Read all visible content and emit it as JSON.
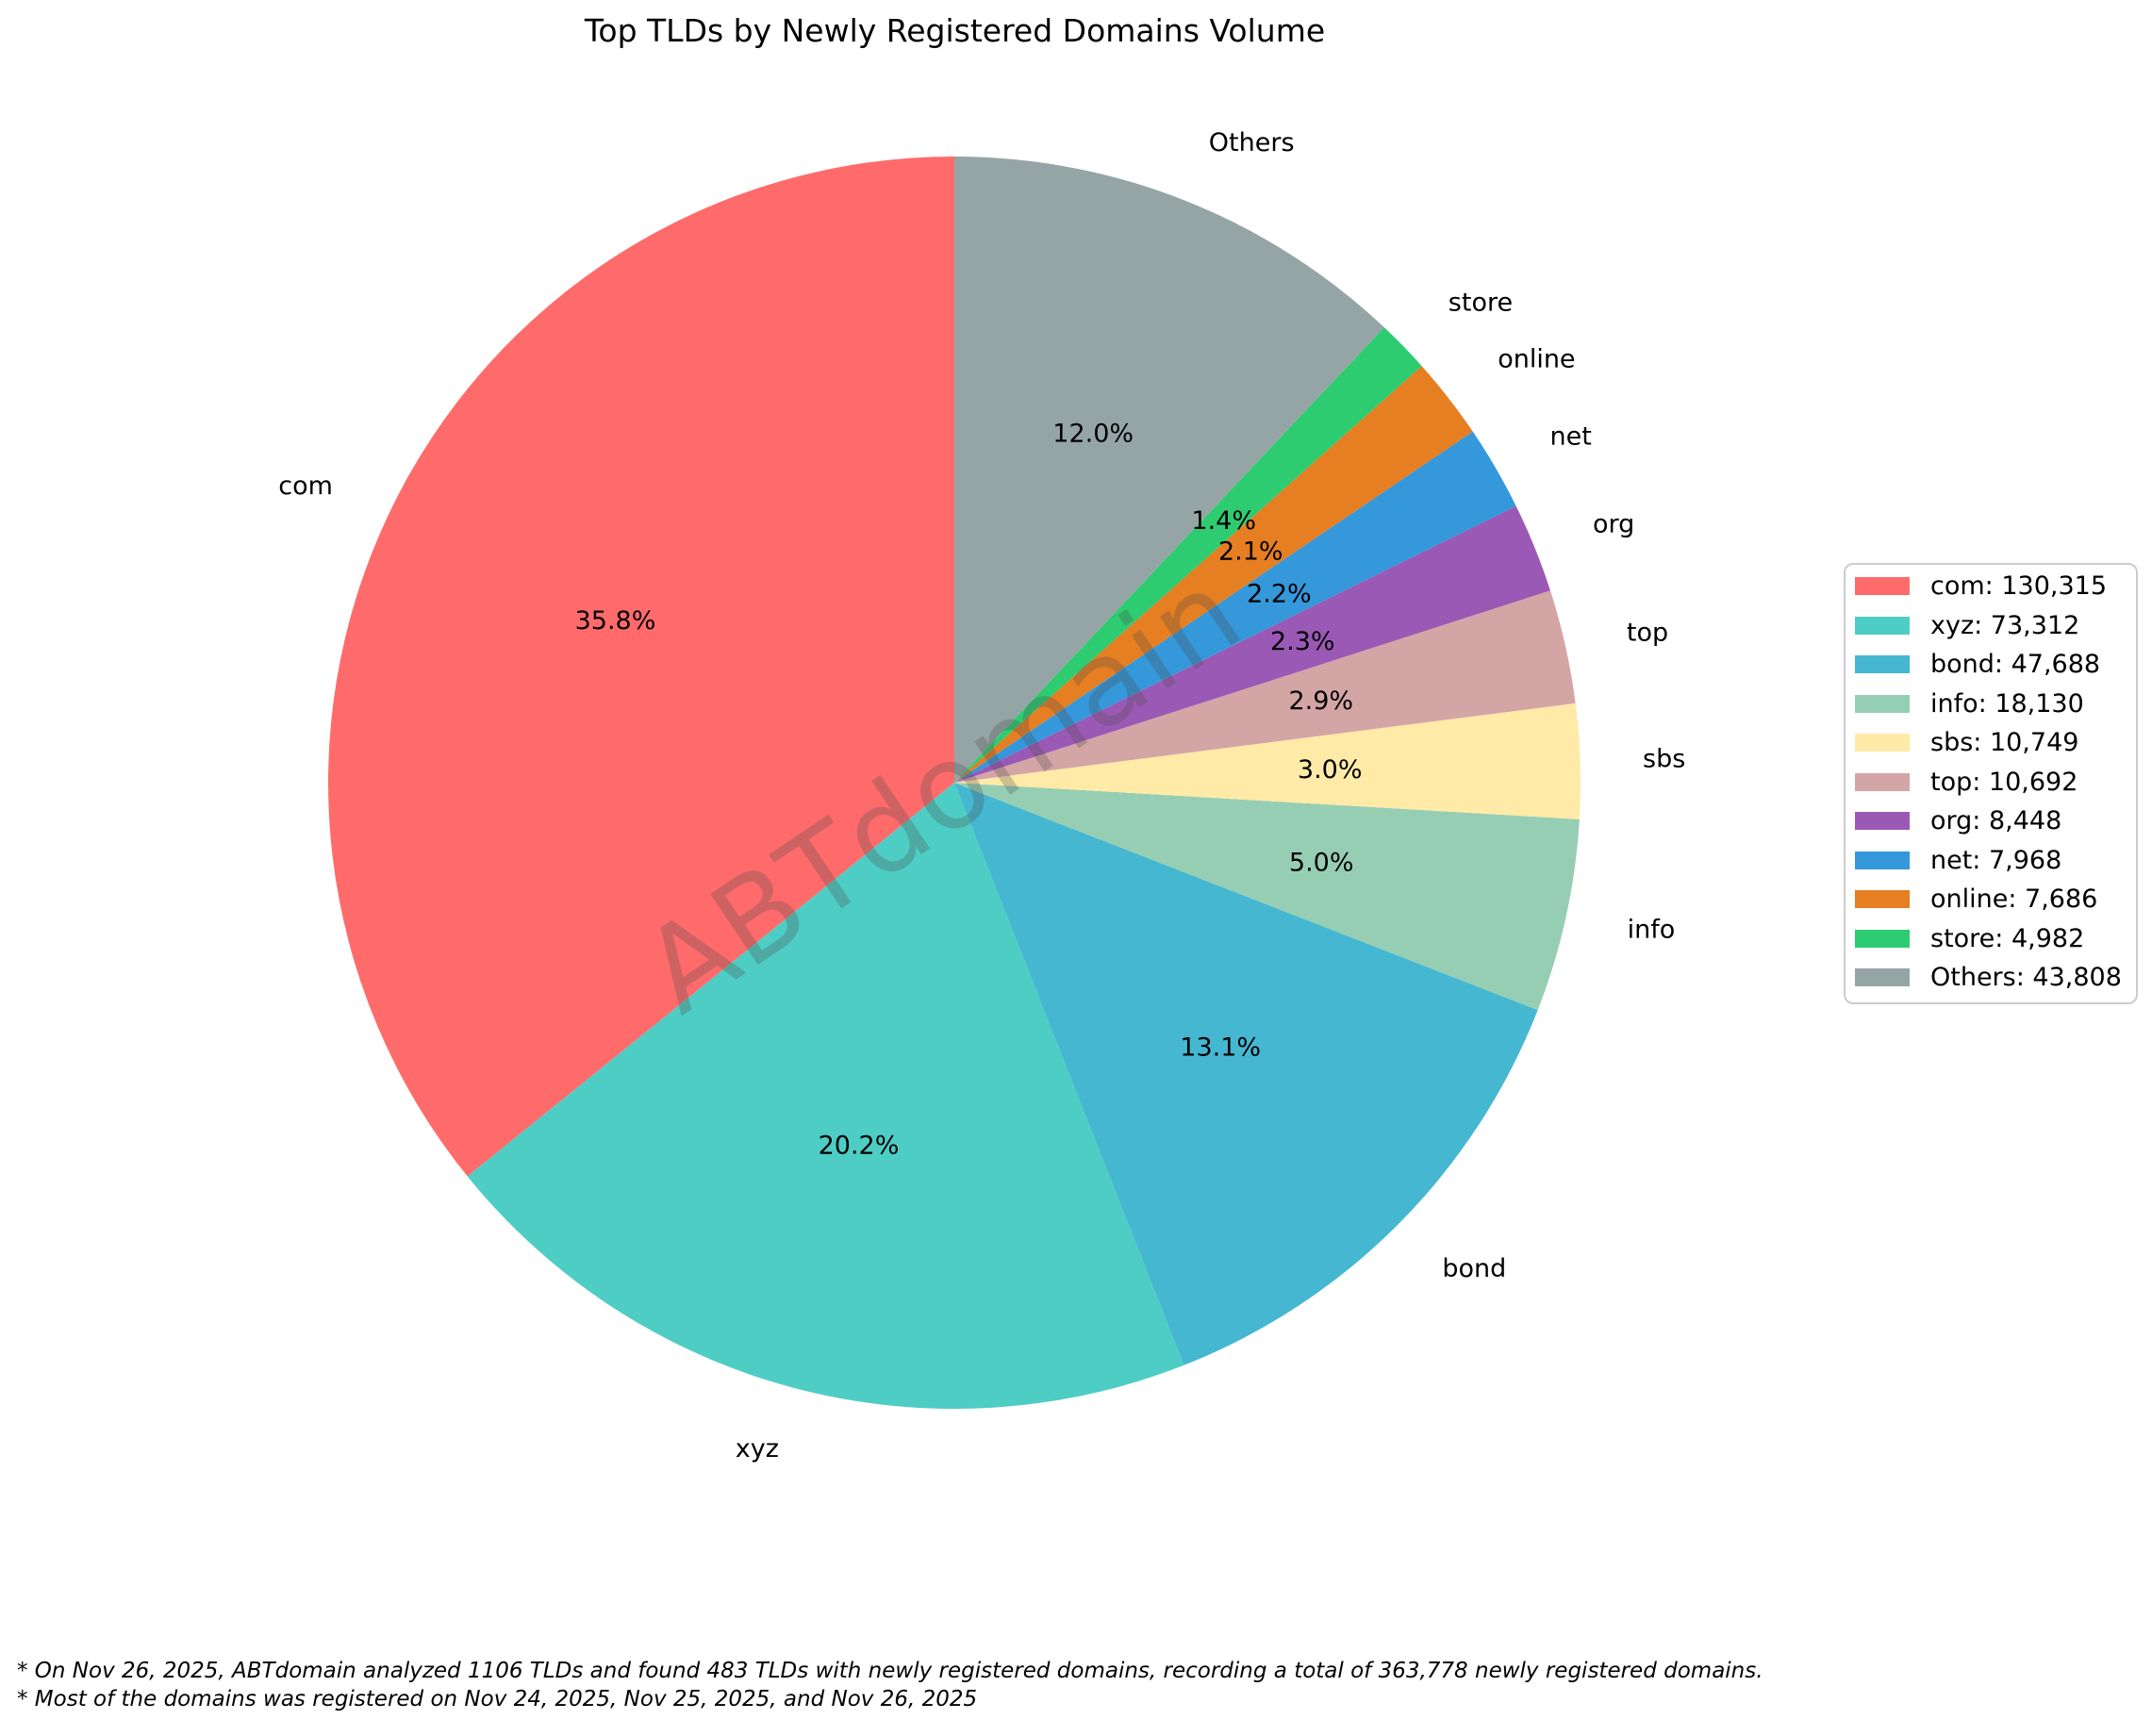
{
  "title": "Top TLDs by Newly Registered Domains Volume",
  "watermark": "ABTdomain",
  "footnotes": [
    "* On Nov 26, 2025, ABTdomain analyzed 1106 TLDs and found 483 TLDs with newly registered domains, recording a total of 363,778 newly registered domains.",
    "* Most of the domains was registered on Nov 24, 2025, Nov 25, 2025, and Nov 26, 2025"
  ],
  "chart_data": {
    "type": "pie",
    "title": "Top TLDs by Newly Registered Domains Volume",
    "total": 363778,
    "slices": [
      {
        "label": "com",
        "value": 130315,
        "pct_label": "35.8%",
        "color": "#FF6B6B"
      },
      {
        "label": "xyz",
        "value": 73312,
        "pct_label": "20.2%",
        "color": "#4ECDC4"
      },
      {
        "label": "bond",
        "value": 47688,
        "pct_label": "13.1%",
        "color": "#45B7D1"
      },
      {
        "label": "info",
        "value": 18130,
        "pct_label": "5.0%",
        "color": "#96CEB4"
      },
      {
        "label": "sbs",
        "value": 10749,
        "pct_label": "3.0%",
        "color": "#FFEAA7"
      },
      {
        "label": "top",
        "value": 10692,
        "pct_label": "2.9%",
        "color": "#D4A5A5"
      },
      {
        "label": "org",
        "value": 8448,
        "pct_label": "2.3%",
        "color": "#9B59B6"
      },
      {
        "label": "net",
        "value": 7968,
        "pct_label": "2.2%",
        "color": "#3498DB"
      },
      {
        "label": "online",
        "value": 7686,
        "pct_label": "2.1%",
        "color": "#E67E22"
      },
      {
        "label": "store",
        "value": 4982,
        "pct_label": "1.4%",
        "color": "#2ECC71"
      },
      {
        "label": "Others",
        "value": 43808,
        "pct_label": "12.0%",
        "color": "#95A5A6"
      }
    ],
    "legend": {
      "position": "right",
      "entries": [
        "com: 130,315",
        "xyz: 73,312",
        "bond: 47,688",
        "info: 18,130",
        "sbs: 10,749",
        "top: 10,692",
        "org: 8,448",
        "net: 7,968",
        "online: 7,686",
        "store: 4,982",
        "Others: 43,808"
      ]
    },
    "layout": {
      "start_angle": 90,
      "counterclockwise": true,
      "center": [
        1012,
        830
      ],
      "radius": 664,
      "label_distance": 1.1,
      "pct_distance": 0.6,
      "legend_position": "right"
    }
  }
}
